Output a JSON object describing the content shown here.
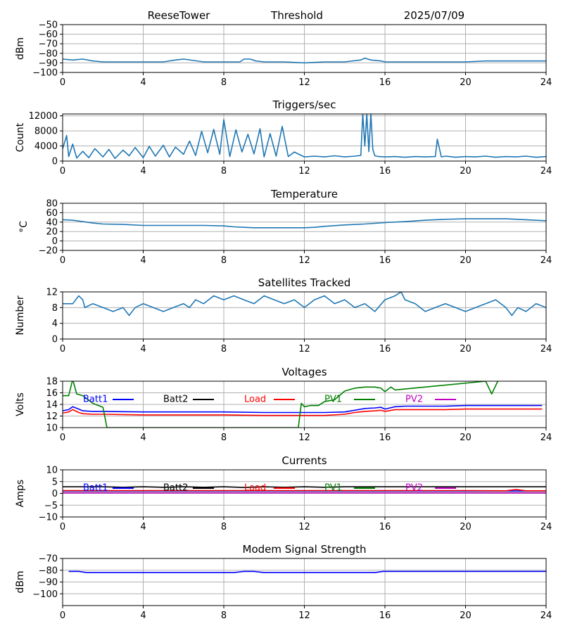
{
  "header": {
    "site": "ReeseTower",
    "threshold_label": "Threshold",
    "date": "2025/07/09"
  },
  "chart_data": [
    {
      "type": "line",
      "title": "",
      "ylabel": "dBm",
      "xlim": [
        0,
        24
      ],
      "ylim": [
        -100,
        -50
      ],
      "xticks": [
        0,
        4,
        8,
        12,
        16,
        20,
        24
      ],
      "yticks": [
        -100,
        -90,
        -80,
        -70,
        -60,
        -50
      ],
      "grid": true,
      "series": [
        {
          "color": "#1f77b4",
          "x": [
            0,
            0.5,
            1,
            1.5,
            2,
            3,
            4,
            5,
            5.6,
            6,
            7,
            8,
            8.8,
            9,
            9.3,
            9.6,
            10,
            11,
            12,
            13,
            14,
            14.8,
            15,
            15.3,
            15.8,
            16,
            17,
            18,
            19,
            20,
            21,
            22,
            23,
            24
          ],
          "y": [
            -86,
            -87,
            -86,
            -88,
            -89,
            -89,
            -89,
            -89,
            -87,
            -86,
            -89,
            -89,
            -89,
            -86,
            -86,
            -88,
            -89,
            -89,
            -90,
            -89,
            -89,
            -87,
            -85,
            -87,
            -88,
            -89,
            -89,
            -89,
            -89,
            -89,
            -88,
            -88,
            -88,
            -88
          ]
        }
      ]
    },
    {
      "type": "line",
      "title": "Triggers/sec",
      "ylabel": "Count",
      "xlim": [
        0,
        24
      ],
      "ylim": [
        0,
        12500
      ],
      "xticks": [
        0,
        4,
        8,
        12,
        16,
        20,
        24
      ],
      "yticks": [
        0,
        4000,
        8000,
        12000
      ],
      "grid": true,
      "series": [
        {
          "color": "#1f77b4",
          "x": [
            0,
            0.2,
            0.3,
            0.5,
            0.7,
            1,
            1.3,
            1.6,
            2,
            2.3,
            2.6,
            3,
            3.3,
            3.6,
            4,
            4.3,
            4.6,
            5,
            5.3,
            5.6,
            6,
            6.3,
            6.6,
            6.9,
            7.2,
            7.5,
            7.8,
            8,
            8.3,
            8.6,
            8.9,
            9.2,
            9.5,
            9.8,
            10,
            10.3,
            10.6,
            10.9,
            11.2,
            11.5,
            12,
            12.5,
            13,
            13.5,
            14,
            14.5,
            14.8,
            14.9,
            15,
            15.1,
            15.2,
            15.3,
            15.4,
            15.5,
            15.7,
            16,
            16.5,
            17,
            17.5,
            18,
            18.5,
            18.6,
            18.8,
            19,
            19.5,
            20,
            20.5,
            21,
            21.5,
            22,
            22.5,
            23,
            23.5,
            24
          ],
          "y": [
            3200,
            6800,
            1200,
            4500,
            800,
            2600,
            900,
            3300,
            1100,
            3100,
            700,
            2900,
            1400,
            3600,
            900,
            3900,
            1300,
            4200,
            1100,
            3700,
            1800,
            5300,
            1500,
            7900,
            2200,
            8400,
            1800,
            11000,
            1200,
            8300,
            2400,
            7100,
            1900,
            8600,
            1100,
            7300,
            1300,
            9200,
            1200,
            2400,
            1100,
            1300,
            1100,
            1400,
            1100,
            1300,
            1500,
            12500,
            4000,
            12500,
            2500,
            12500,
            3000,
            1400,
            1200,
            1100,
            1200,
            1000,
            1200,
            1100,
            1200,
            5800,
            1100,
            1300,
            1000,
            1200,
            1100,
            1300,
            1000,
            1200,
            1100,
            1300,
            1000,
            1200
          ]
        }
      ]
    },
    {
      "type": "line",
      "title": "Temperature",
      "ylabel": "°C",
      "xlim": [
        0,
        24
      ],
      "ylim": [
        -20,
        80
      ],
      "xticks": [
        0,
        4,
        8,
        12,
        16,
        20,
        24
      ],
      "yticks": [
        -20,
        0,
        20,
        40,
        60,
        80
      ],
      "grid": true,
      "series": [
        {
          "color": "#1f77b4",
          "x": [
            0,
            0.5,
            1,
            1.5,
            2,
            3,
            4,
            5,
            6,
            7,
            8,
            8.5,
            9,
            9.5,
            10,
            11,
            12,
            12.5,
            13,
            14,
            15,
            16,
            17,
            18,
            19,
            20,
            21,
            22,
            23,
            24
          ],
          "y": [
            45,
            44,
            41,
            38,
            36,
            35,
            33,
            33,
            33,
            33,
            32,
            30,
            29,
            28,
            28,
            28,
            28,
            29,
            31,
            34,
            36,
            39,
            41,
            44,
            46,
            47,
            47,
            47,
            45,
            43
          ]
        }
      ]
    },
    {
      "type": "line",
      "title": "Satellites Tracked",
      "ylabel": "Number",
      "xlim": [
        0,
        24
      ],
      "ylim": [
        0,
        12
      ],
      "xticks": [
        0,
        4,
        8,
        12,
        16,
        20,
        24
      ],
      "yticks": [
        0,
        4,
        8,
        12
      ],
      "grid": true,
      "series": [
        {
          "color": "#1f77b4",
          "x": [
            0,
            0.5,
            0.8,
            1,
            1.1,
            1.5,
            2,
            2.5,
            3,
            3.3,
            3.6,
            4,
            4.5,
            5,
            5.5,
            6,
            6.3,
            6.6,
            7,
            7.5,
            8,
            8.5,
            9,
            9.5,
            10,
            10.5,
            11,
            11.5,
            12,
            12.5,
            13,
            13.5,
            14,
            14.5,
            15,
            15.5,
            16,
            16.5,
            16.8,
            17,
            17.5,
            18,
            18.5,
            19,
            19.5,
            20,
            20.5,
            21,
            21.5,
            22,
            22.3,
            22.6,
            23,
            23.5,
            24
          ],
          "y": [
            9,
            9,
            11,
            10,
            8,
            9,
            8,
            7,
            8,
            6,
            8,
            9,
            8,
            7,
            8,
            9,
            8,
            10,
            9,
            11,
            10,
            11,
            10,
            9,
            11,
            10,
            9,
            10,
            8,
            10,
            11,
            9,
            10,
            8,
            9,
            7,
            10,
            11,
            12,
            10,
            9,
            7,
            8,
            9,
            8,
            7,
            8,
            9,
            10,
            8,
            6,
            8,
            7,
            9,
            8
          ]
        }
      ]
    },
    {
      "type": "line",
      "title": "Voltages",
      "ylabel": "Volts",
      "xlim": [
        0,
        24
      ],
      "ylim": [
        10,
        18
      ],
      "xticks": [
        0,
        4,
        8,
        12,
        16,
        20,
        24
      ],
      "yticks": [
        10,
        12,
        14,
        16,
        18
      ],
      "grid": true,
      "legend": "inside-top",
      "series": [
        {
          "name": "Batt1",
          "color": "#0000ff",
          "x": [
            0,
            0.3,
            0.5,
            0.8,
            1,
            1.5,
            2,
            4,
            8,
            10,
            12,
            13,
            14,
            14.5,
            15,
            15.5,
            15.8,
            16,
            16.5,
            17,
            18,
            19,
            20,
            21,
            22,
            23,
            23.8
          ],
          "y": [
            12.9,
            13.1,
            13.6,
            13.2,
            12.9,
            12.8,
            12.8,
            12.7,
            12.7,
            12.6,
            12.6,
            12.6,
            12.7,
            13.0,
            13.3,
            13.4,
            13.5,
            13.2,
            13.6,
            13.7,
            13.7,
            13.7,
            13.8,
            13.8,
            13.8,
            13.8,
            13.8
          ]
        },
        {
          "name": "Batt2",
          "color": "#000000",
          "x": [],
          "y": []
        },
        {
          "name": "Load",
          "color": "#ff0000",
          "x": [
            0,
            0.3,
            0.5,
            0.8,
            1,
            1.5,
            2,
            4,
            8,
            10,
            12,
            13,
            14,
            14.5,
            15,
            15.5,
            15.8,
            16,
            16.5,
            17,
            18,
            19,
            20,
            21,
            22,
            23,
            23.8
          ],
          "y": [
            12.5,
            12.7,
            13.1,
            12.6,
            12.4,
            12.3,
            12.3,
            12.2,
            12.2,
            12.1,
            12.1,
            12.1,
            12.3,
            12.6,
            12.8,
            12.9,
            13.0,
            12.8,
            13.1,
            13.1,
            13.1,
            13.1,
            13.2,
            13.2,
            13.2,
            13.2,
            13.2
          ]
        },
        {
          "name": "PV1",
          "color": "#008000",
          "x": [
            0,
            0.3,
            0.5,
            0.7,
            1,
            1.5,
            2,
            2.2,
            11.7,
            11.85,
            12,
            12.3,
            12.7,
            13,
            13.5,
            14,
            14.5,
            15,
            15.5,
            15.8,
            16,
            16.3,
            16.5,
            21,
            21.3,
            21.6
          ],
          "y": [
            15.5,
            15.5,
            18.3,
            15.8,
            15.5,
            14.2,
            13.5,
            10,
            10,
            14.2,
            13.6,
            13.8,
            13.8,
            14.5,
            14.8,
            16.3,
            16.8,
            17.0,
            17.0,
            16.8,
            16.2,
            17.0,
            16.5,
            18,
            15.8,
            18
          ]
        },
        {
          "name": "PV2",
          "color": "#bf00bf",
          "x": [],
          "y": []
        }
      ]
    },
    {
      "type": "line",
      "title": "Currents",
      "ylabel": "Amps",
      "xlim": [
        0,
        24
      ],
      "ylim": [
        -10,
        10
      ],
      "xticks": [
        0,
        4,
        8,
        12,
        16,
        20,
        24
      ],
      "yticks": [
        -10,
        -5,
        0,
        5,
        10
      ],
      "grid": true,
      "legend": "inside-top",
      "series": [
        {
          "name": "Batt1",
          "color": "#0000ff",
          "x": [
            0,
            24
          ],
          "y": [
            1.0,
            1.0
          ]
        },
        {
          "name": "Batt2",
          "color": "#000000",
          "x": [
            0,
            2,
            3,
            4,
            5,
            6,
            7,
            8,
            9,
            10,
            11,
            12,
            13,
            14,
            15,
            16,
            20,
            24
          ],
          "y": [
            2.8,
            2.8,
            2.6,
            2.8,
            2.6,
            2.8,
            2.6,
            2.8,
            2.5,
            2.8,
            2.6,
            2.8,
            2.6,
            2.8,
            2.8,
            2.8,
            2.8,
            2.8
          ]
        },
        {
          "name": "Load",
          "color": "#ff0000",
          "x": [
            0,
            20,
            22,
            22.5,
            23,
            24
          ],
          "y": [
            1.2,
            1.2,
            1.1,
            1.6,
            1.1,
            1.1
          ]
        },
        {
          "name": "PV1",
          "color": "#008000",
          "x": [
            0,
            24
          ],
          "y": [
            0.3,
            0.3
          ]
        },
        {
          "name": "PV2",
          "color": "#bf00bf",
          "x": [
            0,
            24
          ],
          "y": [
            0.2,
            0.2
          ]
        }
      ]
    },
    {
      "type": "line",
      "title": "Modem Signal Strength",
      "ylabel": "dBm",
      "xlim": [
        0,
        24
      ],
      "ylim": [
        -110,
        -70
      ],
      "xticks": [
        0,
        4,
        8,
        12,
        16,
        20,
        24
      ],
      "yticks": [
        -100,
        -90,
        -80,
        -70
      ],
      "grid": true,
      "series": [
        {
          "color": "#0000ff",
          "x": [
            0.3,
            0.8,
            1.2,
            1.5,
            8.5,
            9,
            9.5,
            10,
            15.5,
            15.9,
            24
          ],
          "y": [
            -81,
            -81,
            -82,
            -82,
            -82,
            -81,
            -81,
            -82,
            -82,
            -81,
            -81
          ]
        }
      ]
    }
  ]
}
